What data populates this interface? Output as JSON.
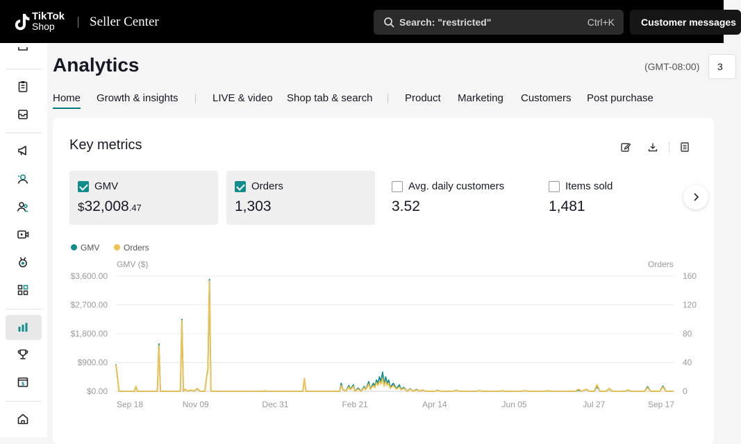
{
  "header": {
    "logo_line1": "TikTok",
    "logo_line2": "Shop",
    "app_name": "Seller Center",
    "search_placeholder": "Search: \"restricted\"",
    "search_shortcut": "Ctrl+K",
    "customer_messages": "Customer messages"
  },
  "sidebar": {
    "icons": [
      "list-icon",
      "clipboard-icon",
      "inbox-icon",
      "megaphone-icon",
      "creator-icon",
      "customers-icon",
      "video-icon",
      "medal-icon",
      "apps-icon",
      "analytics-icon",
      "trophy-icon",
      "finance-icon",
      "home-icon"
    ],
    "active": "analytics-icon"
  },
  "page": {
    "title": "Analytics",
    "timezone": "(GMT-08:00)",
    "date_value": "3"
  },
  "tabs": [
    {
      "label": "Home",
      "active": true
    },
    {
      "label": "Growth & insights"
    },
    {
      "label": "LIVE & video"
    },
    {
      "label": "Shop tab & search"
    },
    {
      "label": "Product"
    },
    {
      "label": "Marketing"
    },
    {
      "label": "Customers"
    },
    {
      "label": "Post purchase"
    }
  ],
  "card": {
    "title": "Key metrics",
    "metrics": [
      {
        "label": "GMV",
        "currency": "$",
        "value": "32,008",
        "decimal": ".47",
        "checked": true
      },
      {
        "label": "Orders",
        "value": "1,303",
        "checked": true
      },
      {
        "label": "Avg. daily customers",
        "value": "3.52",
        "checked": false
      },
      {
        "label": "Items sold",
        "value": "1,481",
        "checked": false
      }
    ]
  },
  "colors": {
    "gmv": "#138c8c",
    "orders": "#f2c14e",
    "accent": "#007a7a"
  },
  "chart_data": {
    "type": "line",
    "legend": [
      "GMV",
      "Orders"
    ],
    "legend_position": "top-left",
    "y_left_label": "GMV ($)",
    "y_right_label": "Orders",
    "y_left_ticks": [
      "$0.00",
      "$900.00",
      "$1,800.00",
      "$2,700.00",
      "$3,600.00"
    ],
    "y_left_range": [
      0,
      3600
    ],
    "y_right_ticks": [
      "0",
      "40",
      "80",
      "120",
      "160"
    ],
    "y_right_range": [
      0,
      160
    ],
    "x_ticks": [
      "Sep 18",
      "Nov 09",
      "Dec 31",
      "Feb 21",
      "Apr 14",
      "Jun 05",
      "Jul 27",
      "Sep 17"
    ],
    "x_range_days": [
      0,
      364
    ],
    "grid": true,
    "series": [
      {
        "name": "GMV",
        "points": [
          [
            0,
            850
          ],
          [
            2,
            0
          ],
          [
            12,
            0
          ],
          [
            13,
            150
          ],
          [
            14,
            0
          ],
          [
            27,
            0
          ],
          [
            28,
            1480
          ],
          [
            29,
            0
          ],
          [
            42,
            0
          ],
          [
            43,
            2250
          ],
          [
            44,
            0
          ],
          [
            45,
            60
          ],
          [
            47,
            0
          ],
          [
            49,
            40
          ],
          [
            51,
            0
          ],
          [
            53,
            80
          ],
          [
            55,
            0
          ],
          [
            58,
            0
          ],
          [
            59,
            400
          ],
          [
            60,
            700
          ],
          [
            61,
            3500
          ],
          [
            62,
            0
          ],
          [
            81,
            0
          ],
          [
            96,
            0
          ],
          [
            97,
            10
          ],
          [
            98,
            0
          ],
          [
            122,
            0
          ],
          [
            123,
            400
          ],
          [
            124,
            0
          ],
          [
            146,
            0
          ],
          [
            147,
            250
          ],
          [
            148,
            60
          ],
          [
            150,
            0
          ],
          [
            152,
            180
          ],
          [
            153,
            60
          ],
          [
            155,
            200
          ],
          [
            156,
            0
          ],
          [
            158,
            100
          ],
          [
            160,
            0
          ],
          [
            162,
            150
          ],
          [
            163,
            50
          ],
          [
            165,
            300
          ],
          [
            166,
            60
          ],
          [
            168,
            250
          ],
          [
            169,
            150
          ],
          [
            170,
            350
          ],
          [
            171,
            250
          ],
          [
            172,
            450
          ],
          [
            173,
            300
          ],
          [
            174,
            600
          ],
          [
            175,
            200
          ],
          [
            176,
            450
          ],
          [
            177,
            250
          ],
          [
            178,
            350
          ],
          [
            179,
            120
          ],
          [
            181,
            250
          ],
          [
            183,
            80
          ],
          [
            185,
            200
          ],
          [
            186,
            60
          ],
          [
            188,
            120
          ],
          [
            190,
            0
          ],
          [
            192,
            80
          ],
          [
            194,
            0
          ],
          [
            196,
            60
          ],
          [
            198,
            0
          ],
          [
            200,
            40
          ],
          [
            202,
            0
          ],
          [
            208,
            0
          ],
          [
            210,
            30
          ],
          [
            212,
            0
          ],
          [
            220,
            0
          ],
          [
            222,
            25
          ],
          [
            224,
            0
          ],
          [
            235,
            0
          ],
          [
            237,
            20
          ],
          [
            239,
            0
          ],
          [
            250,
            0
          ],
          [
            252,
            15
          ],
          [
            254,
            0
          ],
          [
            265,
            0
          ],
          [
            267,
            20
          ],
          [
            269,
            0
          ],
          [
            280,
            0
          ],
          [
            282,
            15
          ],
          [
            284,
            0
          ],
          [
            300,
            0
          ],
          [
            302,
            40
          ],
          [
            304,
            0
          ],
          [
            307,
            60
          ],
          [
            309,
            0
          ],
          [
            312,
            0
          ],
          [
            314,
            150
          ],
          [
            316,
            0
          ],
          [
            320,
            0
          ],
          [
            322,
            80
          ],
          [
            324,
            0
          ],
          [
            333,
            0
          ],
          [
            334,
            40
          ],
          [
            336,
            0
          ],
          [
            345,
            0
          ],
          [
            347,
            140
          ],
          [
            349,
            0
          ],
          [
            355,
            0
          ],
          [
            357,
            160
          ],
          [
            359,
            0
          ],
          [
            364,
            0
          ]
        ]
      },
      {
        "name": "Orders",
        "points": [
          [
            0,
            37
          ],
          [
            2,
            0
          ],
          [
            12,
            0
          ],
          [
            13,
            7
          ],
          [
            14,
            0
          ],
          [
            27,
            0
          ],
          [
            28,
            63
          ],
          [
            29,
            0
          ],
          [
            42,
            0
          ],
          [
            43,
            98
          ],
          [
            44,
            0
          ],
          [
            45,
            3
          ],
          [
            47,
            0
          ],
          [
            49,
            2
          ],
          [
            51,
            0
          ],
          [
            53,
            4
          ],
          [
            55,
            0
          ],
          [
            58,
            0
          ],
          [
            59,
            17
          ],
          [
            60,
            30
          ],
          [
            61,
            153
          ],
          [
            62,
            0
          ],
          [
            81,
            0
          ],
          [
            96,
            0
          ],
          [
            97,
            1
          ],
          [
            98,
            0
          ],
          [
            122,
            0
          ],
          [
            123,
            18
          ],
          [
            124,
            0
          ],
          [
            146,
            0
          ],
          [
            147,
            8
          ],
          [
            148,
            3
          ],
          [
            150,
            0
          ],
          [
            152,
            6
          ],
          [
            153,
            2
          ],
          [
            155,
            7
          ],
          [
            156,
            0
          ],
          [
            158,
            3
          ],
          [
            160,
            0
          ],
          [
            162,
            5
          ],
          [
            163,
            2
          ],
          [
            165,
            10
          ],
          [
            166,
            3
          ],
          [
            168,
            8
          ],
          [
            169,
            5
          ],
          [
            170,
            12
          ],
          [
            171,
            8
          ],
          [
            172,
            14
          ],
          [
            173,
            10
          ],
          [
            174,
            18
          ],
          [
            175,
            7
          ],
          [
            176,
            14
          ],
          [
            177,
            8
          ],
          [
            178,
            11
          ],
          [
            179,
            4
          ],
          [
            181,
            8
          ],
          [
            183,
            3
          ],
          [
            185,
            6
          ],
          [
            186,
            2
          ],
          [
            188,
            4
          ],
          [
            190,
            0
          ],
          [
            192,
            3
          ],
          [
            194,
            0
          ],
          [
            196,
            2
          ],
          [
            198,
            0
          ],
          [
            200,
            2
          ],
          [
            202,
            0
          ],
          [
            208,
            0
          ],
          [
            210,
            1
          ],
          [
            212,
            0
          ],
          [
            220,
            0
          ],
          [
            222,
            1
          ],
          [
            224,
            0
          ],
          [
            235,
            0
          ],
          [
            237,
            1
          ],
          [
            239,
            0
          ],
          [
            250,
            0
          ],
          [
            252,
            1
          ],
          [
            254,
            0
          ],
          [
            265,
            0
          ],
          [
            267,
            1
          ],
          [
            269,
            0
          ],
          [
            280,
            0
          ],
          [
            282,
            1
          ],
          [
            284,
            0
          ],
          [
            300,
            0
          ],
          [
            302,
            3
          ],
          [
            304,
            0
          ],
          [
            307,
            3
          ],
          [
            309,
            0
          ],
          [
            312,
            0
          ],
          [
            314,
            9
          ],
          [
            316,
            0
          ],
          [
            320,
            0
          ],
          [
            322,
            4
          ],
          [
            324,
            0
          ],
          [
            333,
            0
          ],
          [
            334,
            2
          ],
          [
            336,
            0
          ],
          [
            345,
            0
          ],
          [
            347,
            5
          ],
          [
            349,
            0
          ],
          [
            355,
            0
          ],
          [
            357,
            6
          ],
          [
            359,
            0
          ],
          [
            364,
            0
          ]
        ]
      }
    ]
  }
}
